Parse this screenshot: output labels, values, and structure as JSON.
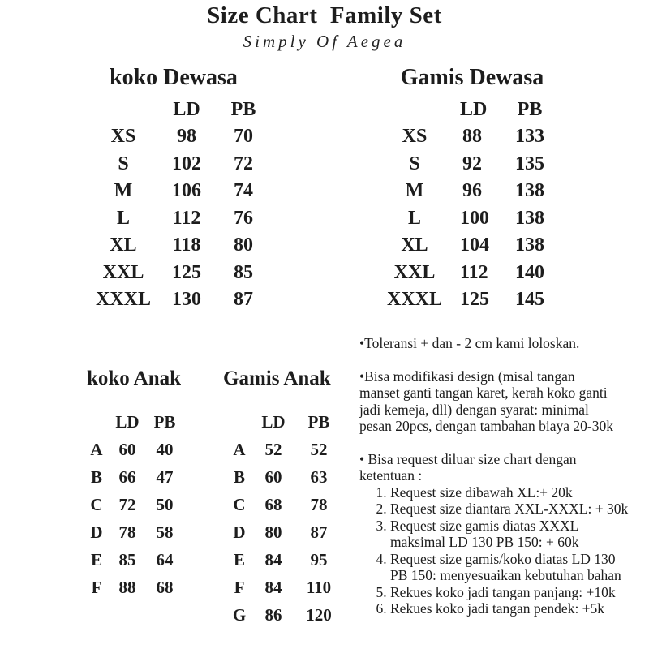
{
  "header": {
    "title": "Size Chart  Family Set",
    "subtitle": "Simply Of Aegea"
  },
  "tables": {
    "koko_dewasa": {
      "title": "koko Dewasa",
      "columns": [
        "LD",
        "PB"
      ],
      "rows": [
        [
          "XS",
          "98",
          "70"
        ],
        [
          "S",
          "102",
          "72"
        ],
        [
          "M",
          "106",
          "74"
        ],
        [
          "L",
          "112",
          "76"
        ],
        [
          "XL",
          "118",
          "80"
        ],
        [
          "XXL",
          "125",
          "85"
        ],
        [
          "XXXL",
          "130",
          "87"
        ]
      ]
    },
    "gamis_dewasa": {
      "title": "Gamis Dewasa",
      "columns": [
        "LD",
        "PB"
      ],
      "rows": [
        [
          "XS",
          "88",
          "133"
        ],
        [
          "S",
          "92",
          "135"
        ],
        [
          "M",
          "96",
          "138"
        ],
        [
          "L",
          "100",
          "138"
        ],
        [
          "XL",
          "104",
          "138"
        ],
        [
          "XXL",
          "112",
          "140"
        ],
        [
          "XXXL",
          "125",
          "145"
        ]
      ]
    },
    "koko_anak": {
      "title": "koko Anak",
      "columns": [
        "LD",
        "PB"
      ],
      "rows": [
        [
          "A",
          "60",
          "40"
        ],
        [
          "B",
          "66",
          "47"
        ],
        [
          "C",
          "72",
          "50"
        ],
        [
          "D",
          "78",
          "58"
        ],
        [
          "E",
          "85",
          "64"
        ],
        [
          "F",
          "88",
          "68"
        ]
      ]
    },
    "gamis_anak": {
      "title": "Gamis Anak",
      "columns": [
        "LD",
        "PB"
      ],
      "rows": [
        [
          "A",
          "52",
          "52"
        ],
        [
          "B",
          "60",
          "63"
        ],
        [
          "C",
          "68",
          "78"
        ],
        [
          "D",
          "80",
          "87"
        ],
        [
          "E",
          "84",
          "95"
        ],
        [
          "F",
          "84",
          "110"
        ],
        [
          "G",
          "86",
          "120"
        ]
      ]
    }
  },
  "notes": {
    "toleransi": "•Toleransi + dan - 2 cm kami loloskan.",
    "modifikasi": "•Bisa modifikasi design (misal tangan\nmanset ganti tangan karet, kerah koko ganti\njadi kemeja, dll) dengan syarat: minimal\npesan 20pcs, dengan tambahan biaya 20-30k",
    "request_intro": "• Bisa request diluar size chart dengan\nketentuan :",
    "request_items": [
      "Request size dibawah XL:+ 20k",
      "Request size diantara XXL-XXXL: + 30k",
      "Request size gamis diatas XXXL\nmaksimal LD 130 PB 150: + 60k",
      "Request size gamis/koko diatas LD 130\nPB 150: menyesuaikan kebutuhan bahan",
      "Rekues koko jadi tangan panjang: +10k",
      "Rekues koko jadi tangan pendek: +5k"
    ]
  },
  "colors": {
    "text": "#1d1d1d",
    "background": "#ffffff"
  }
}
